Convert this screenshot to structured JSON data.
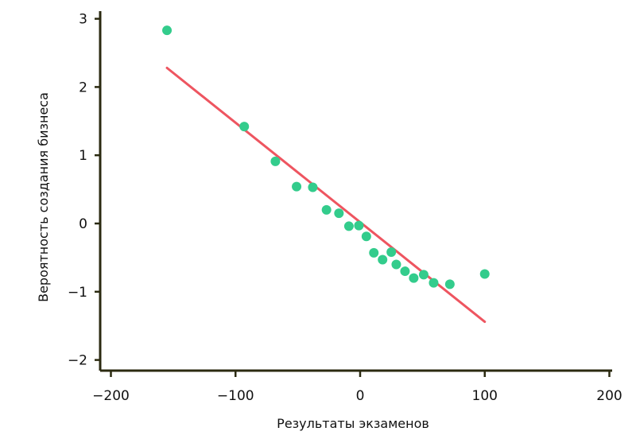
{
  "chart_data": {
    "type": "scatter",
    "title": "",
    "xlabel": "Результаты экзаменов",
    "ylabel": "Вероятность создания бизнеса",
    "xlim": [
      -205,
      205
    ],
    "ylim": [
      -2.1,
      3.1
    ],
    "xticks": [
      -200,
      -100,
      0,
      100,
      200
    ],
    "yticks": [
      -2,
      -1,
      0,
      1,
      2,
      3
    ],
    "xtick_labels": [
      "−200",
      "−100",
      "0",
      "100",
      "200"
    ],
    "ytick_labels": [
      "−2",
      "−1",
      "0",
      "1",
      "2",
      "3"
    ],
    "grid": false,
    "legend": "none",
    "colors": {
      "points": "#33CC8C",
      "fit": "#EE5560",
      "axis": "#2B2A10"
    },
    "series": [
      {
        "type": "scatter",
        "x": [
          -155,
          -93,
          -68,
          -51,
          -38,
          -27,
          -17,
          -9,
          -1,
          5,
          11,
          18,
          25,
          29,
          36,
          43,
          51,
          59,
          72,
          100
        ],
        "y": [
          2.83,
          1.42,
          0.91,
          0.54,
          0.53,
          0.2,
          0.15,
          -0.04,
          -0.03,
          -0.19,
          -0.43,
          -0.53,
          -0.42,
          -0.6,
          -0.7,
          -0.8,
          -0.75,
          -0.87,
          -0.89,
          -0.74
        ]
      },
      {
        "type": "line",
        "x": [
          -155,
          100
        ],
        "y": [
          2.28,
          -1.44
        ]
      }
    ]
  }
}
